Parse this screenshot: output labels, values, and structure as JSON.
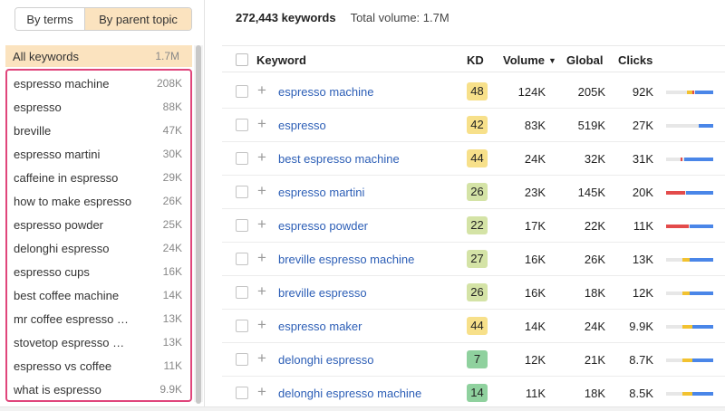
{
  "toggle": {
    "by_terms": "By terms",
    "by_parent_topic": "By parent topic"
  },
  "sidebar": {
    "all_keywords": {
      "label": "All keywords",
      "count": "1.7M"
    },
    "topics": [
      {
        "label": "espresso machine",
        "count": "208K"
      },
      {
        "label": "espresso",
        "count": "88K"
      },
      {
        "label": "breville",
        "count": "47K"
      },
      {
        "label": "espresso martini",
        "count": "30K"
      },
      {
        "label": "caffeine in espresso",
        "count": "29K"
      },
      {
        "label": "how to make espresso",
        "count": "26K"
      },
      {
        "label": "espresso powder",
        "count": "25K"
      },
      {
        "label": "delonghi espresso",
        "count": "24K"
      },
      {
        "label": "espresso cups",
        "count": "16K"
      },
      {
        "label": "best coffee machine",
        "count": "14K"
      },
      {
        "label": "mr coffee espresso …",
        "count": "13K"
      },
      {
        "label": "stovetop espresso …",
        "count": "13K"
      },
      {
        "label": "espresso vs coffee",
        "count": "11K"
      },
      {
        "label": "what is espresso",
        "count": "9.9K"
      }
    ]
  },
  "summary": {
    "total_keywords": "272,443 keywords",
    "total_volume": "Total volume: 1.7M"
  },
  "table": {
    "headers": {
      "keyword": "Keyword",
      "kd": "KD",
      "volume": "Volume",
      "global": "Global",
      "clicks": "Clicks"
    },
    "sort_icon": "caret-down-icon",
    "kd_colors": {
      "yellow": "#f7e08a",
      "light_green": "#d4e3a6",
      "green": "#8fd19e"
    },
    "bar_colors": {
      "organic": "#4a86e8",
      "paid": "#f2c230",
      "other": "#e34b4b",
      "empty": "#e7e7e7"
    },
    "rows": [
      {
        "keyword": "espresso machine",
        "kd": "48",
        "kd_color": "#f7e08a",
        "volume": "124K",
        "global": "205K",
        "clicks": "92K",
        "bar": [
          0.0,
          0.45,
          0.55,
          0.6,
          0.62,
          1.0
        ]
      },
      {
        "keyword": "espresso",
        "kd": "42",
        "kd_color": "#f7e08a",
        "volume": "83K",
        "global": "519K",
        "clicks": "27K",
        "bar": [
          0.7,
          0.7,
          0.7,
          0.7,
          0.7,
          1.0
        ]
      },
      {
        "keyword": "best espresso machine",
        "kd": "44",
        "kd_color": "#f7e08a",
        "volume": "24K",
        "global": "32K",
        "clicks": "31K",
        "bar": [
          0.0,
          0.3,
          0.3,
          0.34,
          0.38,
          1.0
        ]
      },
      {
        "keyword": "espresso martini",
        "kd": "26",
        "kd_color": "#d4e3a6",
        "volume": "23K",
        "global": "145K",
        "clicks": "20K",
        "bar": [
          0.0,
          0.0,
          0.0,
          0.4,
          0.42,
          1.0
        ]
      },
      {
        "keyword": "espresso powder",
        "kd": "22",
        "kd_color": "#d4e3a6",
        "volume": "17K",
        "global": "22K",
        "clicks": "11K",
        "bar": [
          0.0,
          0.0,
          0.0,
          0.48,
          0.5,
          1.0
        ]
      },
      {
        "keyword": "breville espresso machine",
        "kd": "27",
        "kd_color": "#d4e3a6",
        "volume": "16K",
        "global": "26K",
        "clicks": "13K",
        "bar": [
          0.0,
          0.35,
          0.5,
          0.5,
          0.5,
          1.0
        ]
      },
      {
        "keyword": "breville espresso",
        "kd": "26",
        "kd_color": "#d4e3a6",
        "volume": "16K",
        "global": "18K",
        "clicks": "12K",
        "bar": [
          0.0,
          0.35,
          0.5,
          0.5,
          0.5,
          1.0
        ]
      },
      {
        "keyword": "espresso maker",
        "kd": "44",
        "kd_color": "#f7e08a",
        "volume": "14K",
        "global": "24K",
        "clicks": "9.9K",
        "bar": [
          0.0,
          0.35,
          0.55,
          0.55,
          0.55,
          1.0
        ]
      },
      {
        "keyword": "delonghi espresso",
        "kd": "7",
        "kd_color": "#8fd19e",
        "volume": "12K",
        "global": "21K",
        "clicks": "8.7K",
        "bar": [
          0.0,
          0.35,
          0.55,
          0.55,
          0.55,
          1.0
        ]
      },
      {
        "keyword": "delonghi espresso machine",
        "kd": "14",
        "kd_color": "#8fd19e",
        "volume": "11K",
        "global": "18K",
        "clicks": "8.5K",
        "bar": [
          0.0,
          0.35,
          0.55,
          0.55,
          0.55,
          1.0
        ]
      }
    ]
  }
}
